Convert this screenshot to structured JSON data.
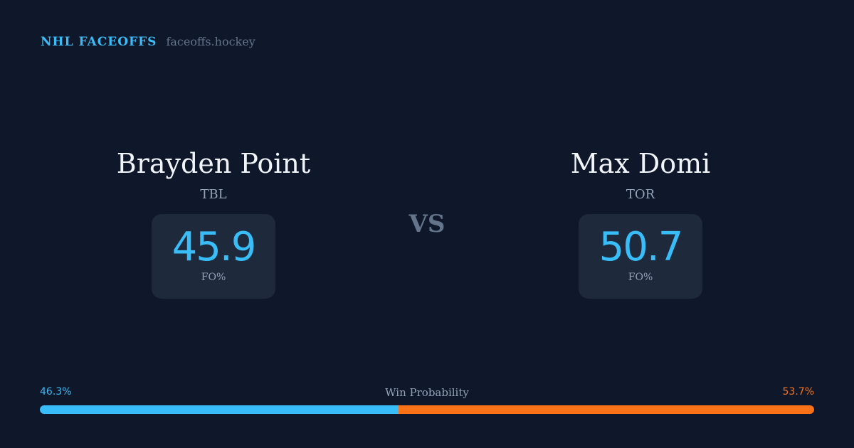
{
  "header": {
    "title": "NHL FACEOFFS",
    "site": "faceoffs.hockey"
  },
  "players": [
    {
      "name": "Brayden Point",
      "team": "TBL",
      "value": "45.9",
      "label": "FO%"
    },
    {
      "name": "Max Domi",
      "team": "TOR",
      "value": "50.7",
      "label": "FO%"
    }
  ],
  "vs": "VS",
  "win_probability": {
    "title": "Win Probability",
    "left": "46.3%",
    "right": "53.7%",
    "left_fraction": 0.463,
    "colors": {
      "left": "#38bdf8",
      "right": "#f97316"
    }
  }
}
